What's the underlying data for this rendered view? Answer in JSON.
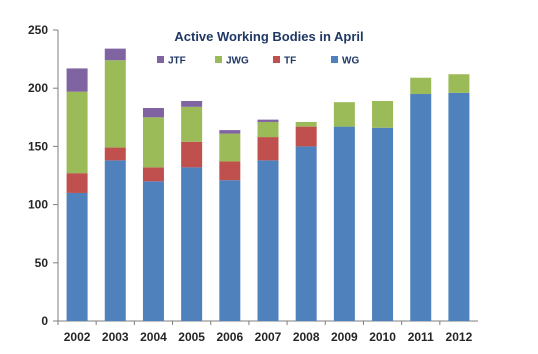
{
  "chart_data": {
    "type": "bar",
    "stacked": true,
    "title": "Active Working Bodies in April",
    "xlabel": "",
    "ylabel": "",
    "categories": [
      "2002",
      "2003",
      "2004",
      "2005",
      "2006",
      "2007",
      "2008",
      "2009",
      "2010",
      "2011",
      "2012"
    ],
    "ylim": [
      0,
      250
    ],
    "yticks": [
      0,
      50,
      100,
      150,
      200,
      250
    ],
    "grid": false,
    "legend_position": "top-center",
    "legend_order": [
      "JTF",
      "JWG",
      "TF",
      "WG"
    ],
    "series": [
      {
        "name": "WG",
        "color": "#4F81BD",
        "values": [
          110,
          138,
          120,
          132,
          121,
          138,
          150,
          167,
          166,
          195,
          196
        ]
      },
      {
        "name": "TF",
        "color": "#C0504D",
        "values": [
          17,
          11,
          12,
          22,
          16,
          20,
          17,
          0,
          0,
          0,
          0
        ]
      },
      {
        "name": "JWG",
        "color": "#9BBB59",
        "values": [
          70,
          75,
          43,
          30,
          24,
          13,
          4,
          21,
          23,
          14,
          16
        ]
      },
      {
        "name": "JTF",
        "color": "#8064A2",
        "values": [
          20,
          10,
          8,
          5,
          3,
          2,
          0,
          0,
          0,
          0,
          0
        ]
      }
    ]
  }
}
